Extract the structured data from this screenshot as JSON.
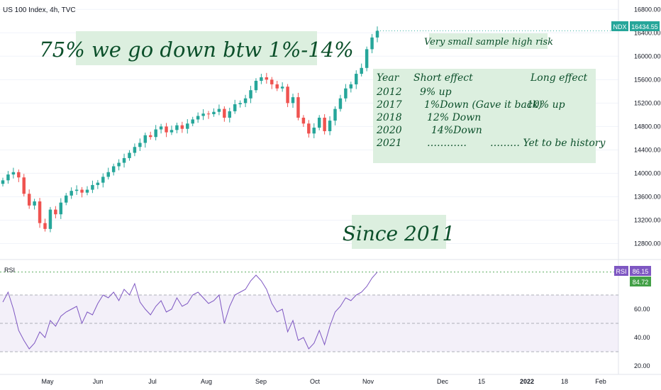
{
  "header": {
    "title": "US 100 Index, 4h, TVC"
  },
  "price_badge": {
    "label": "NDX",
    "value": "16434.55",
    "color": "#26a69a"
  },
  "rsi_badges": {
    "label": "RSI",
    "value": "86.15",
    "ma_value": "84.72",
    "color": "#7e57c2",
    "ma_color": "#43a047"
  },
  "annotations": {
    "main": "75% we go down btw 1%-14%",
    "risk": "Very small sample high risk",
    "since": "Since 2011",
    "table": {
      "headers": [
        "Year",
        "Short effect",
        "Long effect"
      ],
      "rows": [
        [
          "2012",
          "9% up",
          ""
        ],
        [
          "2017",
          "1%Down (Gave it back)",
          "10% up"
        ],
        [
          "2018",
          "12% Down",
          ""
        ],
        [
          "2020",
          "14%Down",
          ""
        ],
        [
          "2021",
          "…………",
          "……… Yet to be history"
        ]
      ]
    }
  },
  "chart_data": [
    {
      "type": "candlestick",
      "title": "US 100 Index, 4h, TVC",
      "y_ticks": [
        "16800.00",
        "16400.00",
        "16000.00",
        "15600.00",
        "15200.00",
        "14800.00",
        "14400.00",
        "14000.00",
        "13600.00",
        "13200.00",
        "12800.00"
      ],
      "ylim": [
        12600,
        16900
      ],
      "x_ticks": [
        "May",
        "Jun",
        "Jul",
        "Aug",
        "Sep",
        "Oct",
        "Nov",
        "Dec",
        "15",
        "2022",
        "18",
        "Feb"
      ],
      "colors": {
        "up": "#26a69a",
        "down": "#ef5350"
      },
      "series": [
        {
          "name": "NDX",
          "x": [
            "Apr 21",
            "Apr 23",
            "Apr 27",
            "Apr 29",
            "May 3",
            "May 5",
            "May 7",
            "May 11",
            "May 12",
            "May 13",
            "May 17",
            "May 19",
            "May 21",
            "May 25",
            "May 27",
            "Jun 1",
            "Jun 3",
            "Jun 7",
            "Jun 9",
            "Jun 11",
            "Jun 15",
            "Jun 17",
            "Jun 21",
            "Jun 23",
            "Jun 25",
            "Jun 29",
            "Jul 1",
            "Jul 6",
            "Jul 8",
            "Jul 12",
            "Jul 14",
            "Jul 16",
            "Jul 20",
            "Jul 22",
            "Jul 26",
            "Jul 28",
            "Aug 2",
            "Aug 4",
            "Aug 6",
            "Aug 10",
            "Aug 12",
            "Aug 16",
            "Aug 18",
            "Aug 20",
            "Aug 24",
            "Aug 26",
            "Aug 30",
            "Sep 1",
            "Sep 3",
            "Sep 7",
            "Sep 9",
            "Sep 13",
            "Sep 15",
            "Sep 17",
            "Sep 21",
            "Sep 23",
            "Sep 27",
            "Sep 29",
            "Oct 1",
            "Oct 5",
            "Oct 7",
            "Oct 11",
            "Oct 13",
            "Oct 15",
            "Oct 19",
            "Oct 21",
            "Oct 25",
            "Oct 27",
            "Oct 29",
            "Nov 2",
            "Nov 4",
            "Nov 5"
          ],
          "close": [
            13880,
            13980,
            14020,
            13930,
            13650,
            13450,
            13520,
            13150,
            13050,
            13380,
            13300,
            13500,
            13620,
            13700,
            13720,
            13670,
            13720,
            13800,
            13840,
            13940,
            14020,
            14120,
            14180,
            14260,
            14350,
            14450,
            14520,
            14650,
            14620,
            14750,
            14800,
            14700,
            14740,
            14820,
            14760,
            14850,
            14920,
            14980,
            15020,
            15010,
            15050,
            15100,
            14950,
            15060,
            15180,
            15200,
            15280,
            15420,
            15580,
            15640,
            15600,
            15520,
            15450,
            15480,
            15200,
            15300,
            14950,
            14850,
            14680,
            14780,
            14950,
            14720,
            14900,
            15100,
            15280,
            15450,
            15520,
            15700,
            15800,
            16120,
            16320,
            16434
          ]
        }
      ]
    },
    {
      "type": "line",
      "title": "RSI",
      "y_ticks": [
        "60.00",
        "40.00",
        "20.00"
      ],
      "ylim": [
        17,
        92
      ],
      "bands": [
        30,
        50,
        70
      ],
      "series": [
        {
          "name": "RSI",
          "values": [
            65,
            72,
            60,
            45,
            38,
            32,
            36,
            44,
            40,
            52,
            48,
            55,
            58,
            60,
            62,
            50,
            58,
            56,
            64,
            70,
            68,
            72,
            66,
            74,
            70,
            78,
            65,
            60,
            56,
            62,
            66,
            58,
            60,
            68,
            62,
            64,
            70,
            72,
            68,
            64,
            66,
            70,
            50,
            62,
            70,
            72,
            74,
            80,
            84,
            80,
            74,
            64,
            58,
            60,
            44,
            52,
            38,
            40,
            32,
            36,
            45,
            35,
            48,
            58,
            62,
            68,
            66,
            70,
            72,
            76,
            82,
            86.15
          ]
        }
      ]
    }
  ]
}
